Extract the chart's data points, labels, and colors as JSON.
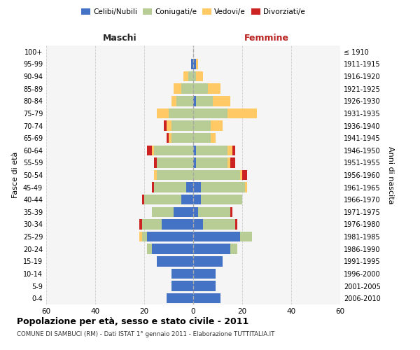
{
  "age_groups": [
    "0-4",
    "5-9",
    "10-14",
    "15-19",
    "20-24",
    "25-29",
    "30-34",
    "35-39",
    "40-44",
    "45-49",
    "50-54",
    "55-59",
    "60-64",
    "65-69",
    "70-74",
    "75-79",
    "80-84",
    "85-89",
    "90-94",
    "95-99",
    "100+"
  ],
  "birth_years": [
    "2006-2010",
    "2001-2005",
    "1996-2000",
    "1991-1995",
    "1986-1990",
    "1981-1985",
    "1976-1980",
    "1971-1975",
    "1966-1970",
    "1961-1965",
    "1956-1960",
    "1951-1955",
    "1946-1950",
    "1941-1945",
    "1936-1940",
    "1931-1935",
    "1926-1930",
    "1921-1925",
    "1916-1920",
    "1911-1915",
    "≤ 1910"
  ],
  "males": {
    "celibi": [
      11,
      9,
      9,
      15,
      17,
      19,
      13,
      8,
      5,
      3,
      0,
      0,
      0,
      0,
      0,
      0,
      0,
      0,
      0,
      1,
      0
    ],
    "coniugati": [
      0,
      0,
      0,
      0,
      2,
      2,
      8,
      9,
      15,
      13,
      15,
      15,
      16,
      9,
      9,
      10,
      7,
      5,
      2,
      0,
      0
    ],
    "vedovi": [
      0,
      0,
      0,
      0,
      0,
      1,
      0,
      0,
      0,
      0,
      1,
      0,
      1,
      1,
      2,
      5,
      2,
      3,
      2,
      0,
      0
    ],
    "divorziati": [
      0,
      0,
      0,
      0,
      0,
      0,
      1,
      0,
      1,
      1,
      0,
      1,
      2,
      1,
      1,
      0,
      0,
      0,
      0,
      0,
      0
    ]
  },
  "females": {
    "nubili": [
      11,
      9,
      9,
      12,
      15,
      19,
      4,
      2,
      3,
      3,
      0,
      1,
      1,
      0,
      0,
      0,
      1,
      0,
      0,
      1,
      0
    ],
    "coniugate": [
      0,
      0,
      0,
      0,
      3,
      5,
      13,
      13,
      17,
      18,
      19,
      13,
      13,
      7,
      7,
      14,
      7,
      6,
      1,
      0,
      0
    ],
    "vedove": [
      0,
      0,
      0,
      0,
      0,
      0,
      0,
      0,
      0,
      1,
      1,
      1,
      2,
      2,
      5,
      12,
      7,
      5,
      3,
      1,
      0
    ],
    "divorziate": [
      0,
      0,
      0,
      0,
      0,
      0,
      1,
      1,
      0,
      0,
      2,
      2,
      1,
      0,
      0,
      0,
      0,
      0,
      0,
      0,
      0
    ]
  },
  "colors": {
    "celibi": "#4472c4",
    "coniugati": "#b8cc96",
    "vedovi": "#ffc966",
    "divorziati": "#cc2222"
  },
  "xlim": 60,
  "title": "Popolazione per età, sesso e stato civile - 2011",
  "subtitle": "COMUNE DI SAMBUCI (RM) - Dati ISTAT 1° gennaio 2011 - Elaborazione TUTTITALIA.IT",
  "ylabel": "Fasce di età",
  "ylabel_right": "Anni di nascita",
  "legend_labels": [
    "Celibi/Nubili",
    "Coniugati/e",
    "Vedovi/e",
    "Divorziati/e"
  ],
  "maschi_label": "Maschi",
  "femmine_label": "Femmine",
  "background_color": "#ffffff",
  "grid_color": "#cccccc"
}
